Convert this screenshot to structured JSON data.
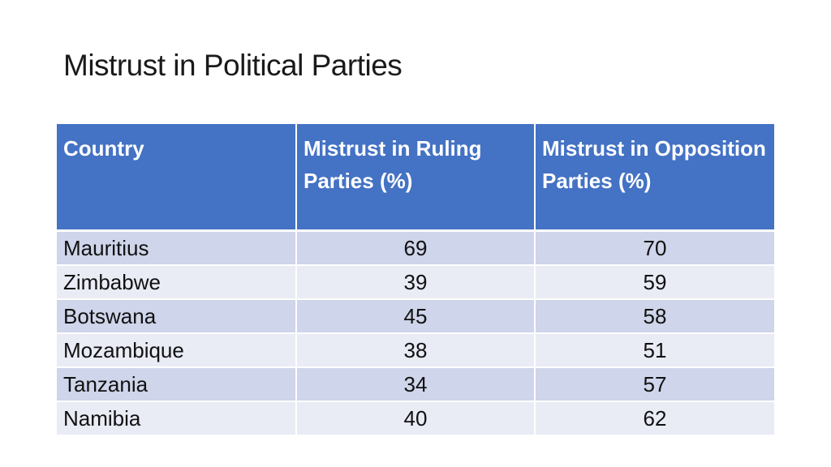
{
  "slide": {
    "title": "Mistrust in Political Parties"
  },
  "table": {
    "headers": [
      "Country",
      "Mistrust in Ruling Parties (%)",
      "Mistrust in Opposition Parties (%)"
    ],
    "rows": [
      {
        "country": "Mauritius",
        "ruling": "69",
        "opposition": "70"
      },
      {
        "country": "Zimbabwe",
        "ruling": "39",
        "opposition": "59"
      },
      {
        "country": "Botswana",
        "ruling": "45",
        "opposition": "58"
      },
      {
        "country": "Mozambique",
        "ruling": "38",
        "opposition": "51"
      },
      {
        "country": "Tanzania",
        "ruling": "34",
        "opposition": "57"
      },
      {
        "country": "Namibia",
        "ruling": "40",
        "opposition": "62"
      }
    ],
    "colors": {
      "header_bg": "#4472c4",
      "row_odd_bg": "#cfd5ea",
      "row_even_bg": "#e9ebf5"
    }
  }
}
